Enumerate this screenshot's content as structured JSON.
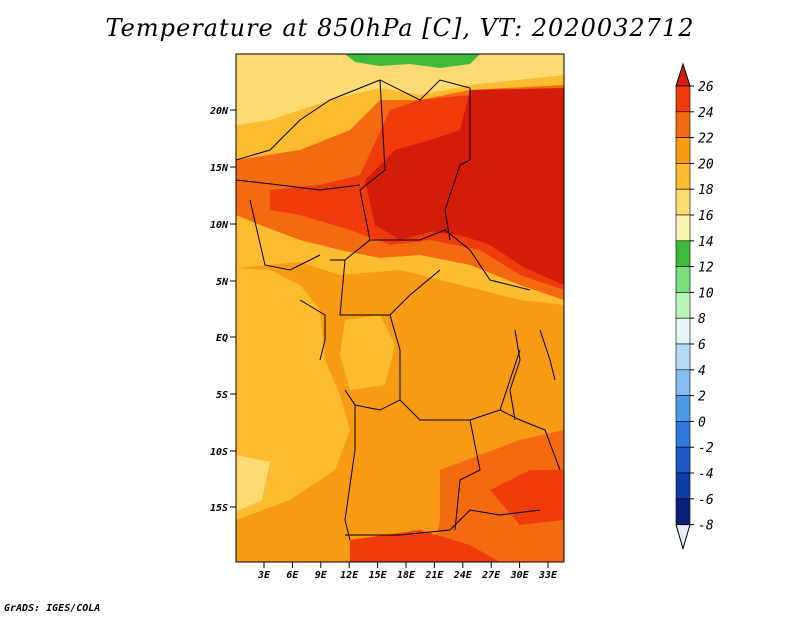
{
  "title": "Temperature at 850hPa [C], VT: 2020032712",
  "credit": "GrADS: IGES/COLA",
  "map": {
    "lat_ticks": [
      "20N",
      "15N",
      "10N",
      "5N",
      "EQ",
      "5S",
      "10S",
      "15S"
    ],
    "lon_ticks": [
      "3E",
      "6E",
      "9E",
      "12E",
      "15E",
      "18E",
      "21E",
      "24E",
      "27E",
      "30E",
      "33E"
    ]
  },
  "colorbar": {
    "labels": [
      "26",
      "24",
      "22",
      "20",
      "18",
      "16",
      "14",
      "12",
      "10",
      "8",
      "6",
      "4",
      "2",
      "0",
      "-2",
      "-4",
      "-6",
      "-8"
    ],
    "colors": [
      "#d31c0a",
      "#f03c0c",
      "#f46a10",
      "#f79a14",
      "#fbbc30",
      "#fddb72",
      "#fff3b4",
      "#3cba3c",
      "#7ae07a",
      "#b8f4b8",
      "#e2f5f7",
      "#b4dcf7",
      "#84bdf3",
      "#4c9ae8",
      "#2f78dc",
      "#1c56c7",
      "#0f3ca8",
      "#0a1f78",
      "#061060"
    ],
    "top_color": "#d31c0a",
    "bottom_color": "#e6ecfa"
  }
}
